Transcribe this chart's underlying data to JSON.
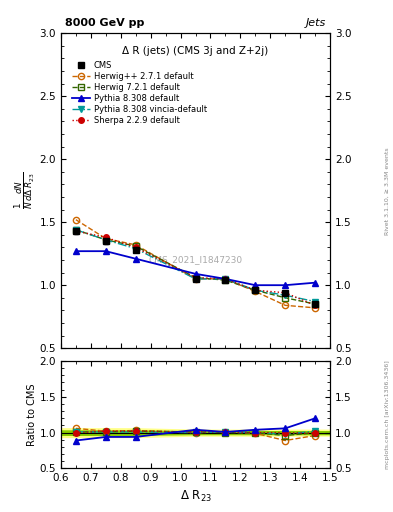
{
  "title": "Δ R (jets) (CMS 3j and Z+2j)",
  "x_label": "Δ R$_{23}$",
  "y_label_main": "$\\frac{1}{N}\\frac{dN}{d\\Delta\\,R_{23}}$",
  "y_label_ratio": "Ratio to CMS",
  "header_left": "8000 GeV pp",
  "header_right": "Jets",
  "right_label_main": "Rivet 3.1.10, ≥ 3.3M events",
  "right_label_ratio": "mcplots.cern.ch [arXiv:1306.3436]",
  "watermark": "CMS_2021_I1847230",
  "xlim": [
    0.6,
    1.5
  ],
  "ylim_main": [
    0.5,
    3.0
  ],
  "ylim_ratio": [
    0.5,
    2.0
  ],
  "x_ticks": [
    0.6,
    0.7,
    0.8,
    0.9,
    1.0,
    1.1,
    1.2,
    1.3,
    1.4,
    1.5
  ],
  "x_data": [
    0.65,
    0.75,
    0.85,
    1.05,
    1.15,
    1.25,
    1.35,
    1.45
  ],
  "cms_y": [
    1.43,
    1.35,
    1.28,
    1.05,
    1.04,
    0.96,
    0.94,
    0.85
  ],
  "cms_yerr": [
    0.02,
    0.02,
    0.02,
    0.01,
    0.01,
    0.01,
    0.01,
    0.01
  ],
  "herwig271_y": [
    1.52,
    1.37,
    1.32,
    1.05,
    1.05,
    0.95,
    0.84,
    0.82
  ],
  "herwig721_y": [
    1.44,
    1.36,
    1.31,
    1.06,
    1.04,
    0.96,
    0.9,
    0.85
  ],
  "pythia8308_y": [
    1.27,
    1.27,
    1.21,
    1.09,
    1.05,
    1.0,
    1.0,
    1.02
  ],
  "pythia8308v_y": [
    1.44,
    1.36,
    1.29,
    1.05,
    1.05,
    0.96,
    0.92,
    0.87
  ],
  "sherpa229_y": [
    1.43,
    1.38,
    1.3,
    1.06,
    1.05,
    0.96,
    0.94,
    0.84
  ],
  "herwig271_ratio": [
    1.06,
    1.02,
    1.03,
    1.0,
    1.01,
    0.99,
    0.89,
    0.96
  ],
  "herwig721_ratio": [
    1.01,
    1.01,
    1.02,
    1.01,
    1.0,
    1.0,
    0.96,
    1.0
  ],
  "pythia8308_ratio": [
    0.89,
    0.94,
    0.94,
    1.04,
    1.01,
    1.04,
    1.06,
    1.2
  ],
  "pythia8308v_ratio": [
    1.01,
    1.01,
    1.01,
    1.0,
    1.01,
    1.0,
    0.98,
    1.02
  ],
  "sherpa229_ratio": [
    1.0,
    1.02,
    1.02,
    1.01,
    1.01,
    1.0,
    1.0,
    0.99
  ],
  "cms_band_err": [
    0.03,
    0.03,
    0.03,
    0.02,
    0.02,
    0.02,
    0.02,
    0.02
  ],
  "color_cms": "#000000",
  "color_herwig271": "#cc6600",
  "color_herwig721": "#336600",
  "color_pythia8308": "#0000cc",
  "color_pythia8308v": "#009999",
  "color_sherpa229": "#cc0000",
  "band_color_green": "#88cc00",
  "band_color_yellow": "#ffff88"
}
